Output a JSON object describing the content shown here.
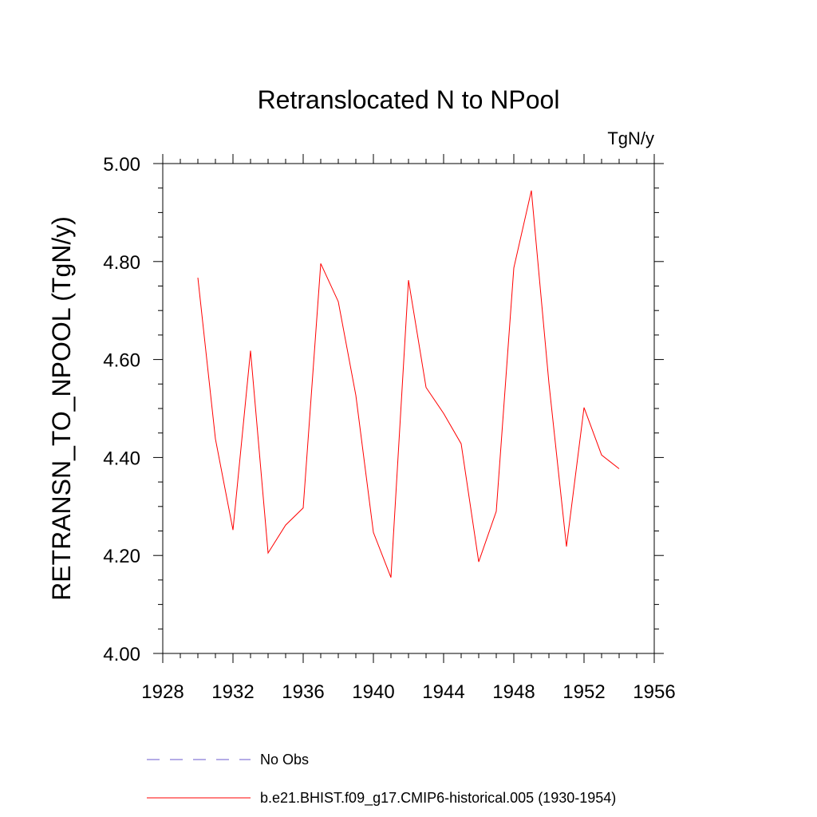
{
  "chart_data": {
    "type": "line",
    "title": "Retranslocated N to NPool",
    "units_label": "TgN/y",
    "xlabel": "",
    "ylabel": "RETRANSN_TO_NPOOL  (TgN/y)",
    "xlim": [
      1928,
      1956
    ],
    "ylim": [
      4.0,
      5.0
    ],
    "x_ticks": [
      1928,
      1932,
      1936,
      1940,
      1944,
      1948,
      1952,
      1956
    ],
    "y_ticks": [
      4.0,
      4.2,
      4.4,
      4.6,
      4.8,
      5.0
    ],
    "y_tick_labels": [
      "4.00",
      "4.20",
      "4.40",
      "4.60",
      "4.80",
      "5.00"
    ],
    "series": [
      {
        "name": "b.e21.BHIST.f09_g17.CMIP6-historical.005 (1930-1954)",
        "color": "#ff0000",
        "style": "solid",
        "x": [
          1930,
          1931,
          1932,
          1933,
          1934,
          1935,
          1936,
          1937,
          1938,
          1939,
          1940,
          1941,
          1942,
          1943,
          1944,
          1945,
          1946,
          1947,
          1948,
          1949,
          1950,
          1951,
          1952,
          1953,
          1954
        ],
        "values": [
          4.767,
          4.438,
          4.252,
          4.618,
          4.205,
          4.262,
          4.297,
          4.796,
          4.718,
          4.527,
          4.247,
          4.155,
          4.762,
          4.543,
          4.49,
          4.428,
          4.187,
          4.29,
          4.787,
          4.945,
          4.552,
          4.218,
          4.502,
          4.405,
          4.377
        ]
      }
    ],
    "legend": [
      {
        "label": "No Obs",
        "color": "#6a5acd",
        "style": "dashed"
      },
      {
        "label": "b.e21.BHIST.f09_g17.CMIP6-historical.005 (1930-1954)",
        "color": "#ff0000",
        "style": "solid"
      }
    ]
  }
}
